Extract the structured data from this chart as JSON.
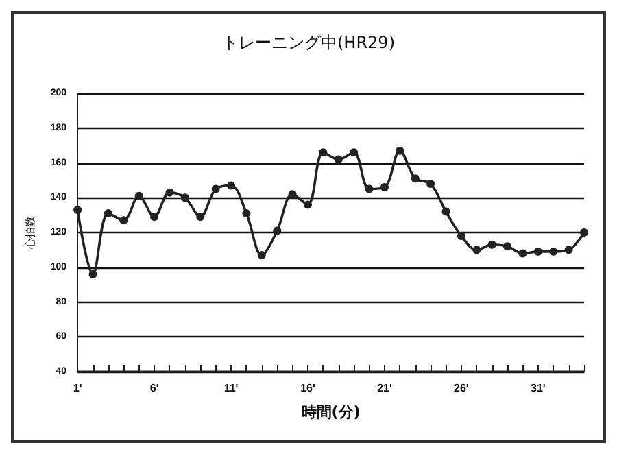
{
  "chart_data": {
    "type": "line",
    "title": "トレーニング中(HR29)",
    "xlabel": "時間(分)",
    "ylabel": "心拍数",
    "categories": [
      "1'",
      null,
      null,
      null,
      null,
      "6'",
      null,
      null,
      null,
      null,
      "11'",
      null,
      null,
      null,
      null,
      "16'",
      null,
      null,
      null,
      null,
      "21'",
      null,
      null,
      null,
      null,
      "26'",
      null,
      null,
      null,
      null,
      "31'",
      null,
      null,
      null
    ],
    "series": [
      {
        "color": "#222222",
        "values": [
          133,
          96,
          131,
          127,
          141,
          129,
          143,
          140,
          129,
          145,
          147,
          131,
          107,
          121,
          142,
          136,
          166,
          162,
          166,
          145,
          146,
          167,
          151,
          148,
          132,
          118,
          110,
          113,
          112,
          108,
          109,
          109,
          110,
          120
        ]
      }
    ],
    "ylim": [
      40,
      200
    ],
    "yticks": [
      40,
      60,
      80,
      100,
      120,
      140,
      160,
      180,
      200
    ],
    "grid": "y",
    "marker": "circle",
    "line_style": "solid"
  }
}
